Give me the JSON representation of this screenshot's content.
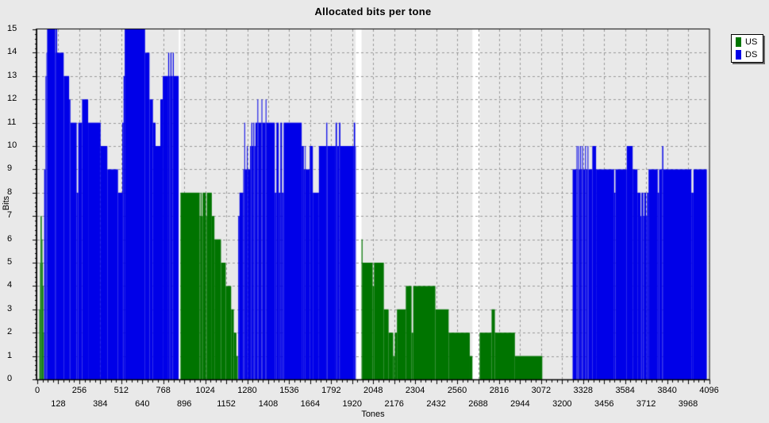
{
  "title": "Allocated bits per tone",
  "legend": {
    "items": [
      {
        "label": "US",
        "color": "#007400"
      },
      {
        "label": "DS",
        "color": "#0000e8"
      }
    ]
  },
  "axes": {
    "x_label": "Tones",
    "y_label": "Bits",
    "x_ticks_row1": [
      0,
      256,
      512,
      768,
      1024,
      1280,
      1536,
      1792,
      2048,
      2304,
      2560,
      2816,
      3072,
      3328,
      3584,
      3840,
      4096
    ],
    "x_ticks_row2": [
      128,
      384,
      640,
      896,
      1152,
      1408,
      1664,
      1920,
      2176,
      2432,
      2688,
      2944,
      3200,
      3456,
      3712,
      3968
    ],
    "y_ticks": [
      0,
      1,
      2,
      3,
      4,
      5,
      6,
      7,
      8,
      9,
      10,
      11,
      12,
      13,
      14,
      15
    ]
  },
  "chart_data": {
    "type": "bar",
    "title": "Allocated bits per tone",
    "xlabel": "Tones",
    "ylabel": "Bits",
    "xlim": [
      0,
      4096
    ],
    "ylim": [
      0,
      15
    ],
    "grid": {
      "x_step": 128,
      "y_step": 1,
      "style": "dashed",
      "color": "#999999"
    },
    "legend_position": "top-right",
    "colors": {
      "background": "#e9e9e9",
      "frame": "#000000",
      "gap_fill": "#ffffff"
    },
    "series": [
      {
        "name": "US",
        "color": "#007400",
        "segments_format": [
          "tone_start",
          "tone_end",
          "bits"
        ],
        "segments": [
          [
            12,
            17,
            3
          ],
          [
            17,
            20,
            5
          ],
          [
            20,
            27,
            7
          ],
          [
            27,
            30,
            6
          ],
          [
            30,
            33,
            5
          ],
          [
            33,
            36,
            4
          ],
          [
            36,
            40,
            2
          ],
          [
            873,
            990,
            8
          ],
          [
            990,
            996,
            7
          ],
          [
            996,
            1002,
            8
          ],
          [
            1002,
            1008,
            7
          ],
          [
            1008,
            1028,
            8
          ],
          [
            1028,
            1034,
            7
          ],
          [
            1034,
            1064,
            8
          ],
          [
            1064,
            1080,
            7
          ],
          [
            1080,
            1120,
            6
          ],
          [
            1120,
            1149,
            5
          ],
          [
            1149,
            1182,
            4
          ],
          [
            1182,
            1198,
            3
          ],
          [
            1198,
            1214,
            2
          ],
          [
            1214,
            1222,
            1
          ],
          [
            1977,
            1983,
            6
          ],
          [
            1983,
            2045,
            5
          ],
          [
            2045,
            2053,
            4
          ],
          [
            2053,
            2113,
            5
          ],
          [
            2113,
            2142,
            3
          ],
          [
            2142,
            2170,
            2
          ],
          [
            2170,
            2180,
            1
          ],
          [
            2180,
            2193,
            2
          ],
          [
            2193,
            2247,
            3
          ],
          [
            2247,
            2282,
            4
          ],
          [
            2282,
            2292,
            2
          ],
          [
            2292,
            2427,
            4
          ],
          [
            2427,
            2508,
            3
          ],
          [
            2508,
            2637,
            2
          ],
          [
            2637,
            2653,
            1
          ],
          [
            2697,
            2770,
            2
          ],
          [
            2770,
            2790,
            3
          ],
          [
            2790,
            2912,
            2
          ],
          [
            2912,
            3079,
            1
          ]
        ]
      },
      {
        "name": "DS",
        "color": "#0000e8",
        "segments_format": [
          "tone_start",
          "tone_end",
          "bits"
        ],
        "segments": [
          [
            42,
            50,
            9
          ],
          [
            50,
            56,
            13
          ],
          [
            56,
            60,
            14
          ],
          [
            60,
            110,
            15
          ],
          [
            110,
            113,
            14
          ],
          [
            113,
            121,
            15
          ],
          [
            121,
            161,
            14
          ],
          [
            161,
            194,
            13
          ],
          [
            194,
            202,
            12
          ],
          [
            202,
            240,
            11
          ],
          [
            240,
            250,
            8
          ],
          [
            250,
            273,
            11
          ],
          [
            273,
            310,
            12
          ],
          [
            310,
            386,
            11
          ],
          [
            386,
            427,
            10
          ],
          [
            427,
            492,
            9
          ],
          [
            492,
            518,
            8
          ],
          [
            518,
            526,
            11
          ],
          [
            526,
            533,
            13
          ],
          [
            533,
            657,
            15
          ],
          [
            657,
            684,
            14
          ],
          [
            684,
            705,
            12
          ],
          [
            705,
            721,
            11
          ],
          [
            721,
            750,
            10
          ],
          [
            750,
            765,
            12
          ],
          [
            765,
            798,
            13
          ],
          [
            798,
            804,
            14
          ],
          [
            804,
            812,
            13
          ],
          [
            812,
            818,
            14
          ],
          [
            818,
            826,
            13
          ],
          [
            826,
            832,
            14
          ],
          [
            832,
            862,
            13
          ],
          [
            1225,
            1233,
            7
          ],
          [
            1233,
            1256,
            8
          ],
          [
            1256,
            1262,
            9
          ],
          [
            1262,
            1267,
            11
          ],
          [
            1267,
            1278,
            9
          ],
          [
            1278,
            1283,
            10
          ],
          [
            1283,
            1297,
            9
          ],
          [
            1297,
            1305,
            10
          ],
          [
            1305,
            1311,
            11
          ],
          [
            1311,
            1317,
            10
          ],
          [
            1317,
            1323,
            11
          ],
          [
            1323,
            1330,
            10
          ],
          [
            1330,
            1342,
            11
          ],
          [
            1342,
            1347,
            12
          ],
          [
            1347,
            1367,
            11
          ],
          [
            1367,
            1372,
            12
          ],
          [
            1372,
            1392,
            11
          ],
          [
            1392,
            1397,
            12
          ],
          [
            1397,
            1448,
            11
          ],
          [
            1448,
            1458,
            8
          ],
          [
            1458,
            1472,
            11
          ],
          [
            1472,
            1482,
            8
          ],
          [
            1482,
            1492,
            11
          ],
          [
            1492,
            1502,
            8
          ],
          [
            1502,
            1612,
            11
          ],
          [
            1612,
            1625,
            10
          ],
          [
            1625,
            1632,
            9
          ],
          [
            1632,
            1635,
            10
          ],
          [
            1635,
            1661,
            9
          ],
          [
            1661,
            1680,
            10
          ],
          [
            1680,
            1717,
            8
          ],
          [
            1717,
            1762,
            10
          ],
          [
            1762,
            1768,
            11
          ],
          [
            1768,
            1819,
            10
          ],
          [
            1819,
            1827,
            11
          ],
          [
            1827,
            1840,
            10
          ],
          [
            1840,
            1848,
            11
          ],
          [
            1848,
            1930,
            10
          ],
          [
            1930,
            1938,
            11
          ],
          [
            1938,
            1941,
            10
          ],
          [
            3264,
            3288,
            9
          ],
          [
            3288,
            3293,
            10
          ],
          [
            3293,
            3298,
            9
          ],
          [
            3298,
            3303,
            10
          ],
          [
            3303,
            3310,
            9
          ],
          [
            3310,
            3315,
            10
          ],
          [
            3315,
            3322,
            9
          ],
          [
            3322,
            3327,
            10
          ],
          [
            3327,
            3340,
            9
          ],
          [
            3340,
            3345,
            10
          ],
          [
            3345,
            3355,
            9
          ],
          [
            3355,
            3360,
            10
          ],
          [
            3360,
            3384,
            9
          ],
          [
            3384,
            3407,
            10
          ],
          [
            3407,
            3517,
            9
          ],
          [
            3517,
            3525,
            8
          ],
          [
            3525,
            3594,
            9
          ],
          [
            3594,
            3630,
            10
          ],
          [
            3630,
            3659,
            9
          ],
          [
            3659,
            3678,
            8
          ],
          [
            3678,
            3684,
            7
          ],
          [
            3684,
            3695,
            8
          ],
          [
            3695,
            3701,
            7
          ],
          [
            3701,
            3712,
            8
          ],
          [
            3712,
            3718,
            7
          ],
          [
            3718,
            3727,
            8
          ],
          [
            3727,
            3783,
            9
          ],
          [
            3783,
            3791,
            8
          ],
          [
            3791,
            3810,
            9
          ],
          [
            3810,
            3817,
            10
          ],
          [
            3817,
            3988,
            9
          ],
          [
            3988,
            4001,
            8
          ],
          [
            4001,
            4082,
            9
          ]
        ]
      }
    ],
    "white_gaps": [
      [
        862,
        873
      ],
      [
        1941,
        1977
      ],
      [
        2653,
        2697
      ]
    ]
  }
}
